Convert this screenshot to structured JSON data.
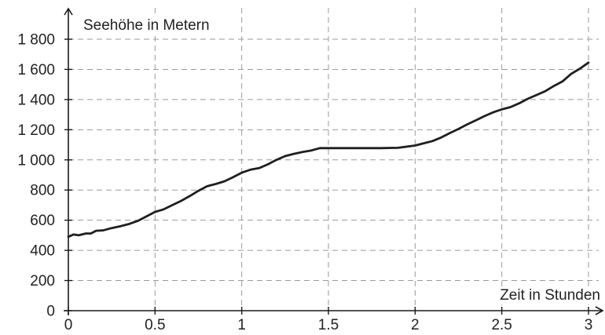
{
  "chart_data": {
    "type": "line",
    "title": "",
    "xlabel": "Zeit in Stunden",
    "ylabel": "Seehöhe in Metern",
    "xlim": [
      0,
      3
    ],
    "ylim": [
      0,
      1800
    ],
    "grid": true,
    "x_ticks": [
      0,
      0.5,
      1,
      1.5,
      2,
      2.5,
      3
    ],
    "x_tick_labels": [
      "0",
      "0.5",
      "1",
      "1.5",
      "2",
      "2.5",
      "3"
    ],
    "y_ticks": [
      0,
      200,
      400,
      600,
      800,
      1000,
      1200,
      1400,
      1600,
      1800
    ],
    "y_tick_labels": [
      "0",
      "200",
      "400",
      "600",
      "800",
      "1 000",
      "1 200",
      "1 400",
      "1 600",
      "1 800"
    ],
    "series": [
      {
        "x": [
          0,
          0.03,
          0.06,
          0.1,
          0.13,
          0.16,
          0.2,
          0.25,
          0.3,
          0.35,
          0.4,
          0.45,
          0.5,
          0.55,
          0.6,
          0.65,
          0.7,
          0.75,
          0.8,
          0.85,
          0.9,
          0.95,
          1.0,
          1.05,
          1.1,
          1.15,
          1.2,
          1.25,
          1.3,
          1.35,
          1.4,
          1.45,
          1.5,
          1.6,
          1.7,
          1.8,
          1.9,
          2.0,
          2.05,
          2.1,
          2.15,
          2.2,
          2.25,
          2.3,
          2.35,
          2.4,
          2.45,
          2.5,
          2.55,
          2.6,
          2.65,
          2.7,
          2.75,
          2.8,
          2.85,
          2.9,
          2.95,
          3.0
        ],
        "y": [
          490,
          505,
          500,
          512,
          512,
          530,
          532,
          548,
          560,
          575,
          595,
          625,
          655,
          672,
          700,
          728,
          760,
          795,
          825,
          840,
          858,
          885,
          915,
          935,
          945,
          970,
          1000,
          1025,
          1040,
          1052,
          1062,
          1078,
          1078,
          1078,
          1078,
          1078,
          1080,
          1095,
          1110,
          1125,
          1148,
          1178,
          1205,
          1235,
          1262,
          1290,
          1315,
          1335,
          1350,
          1375,
          1405,
          1430,
          1455,
          1490,
          1520,
          1570,
          1605,
          1645
        ]
      }
    ]
  }
}
